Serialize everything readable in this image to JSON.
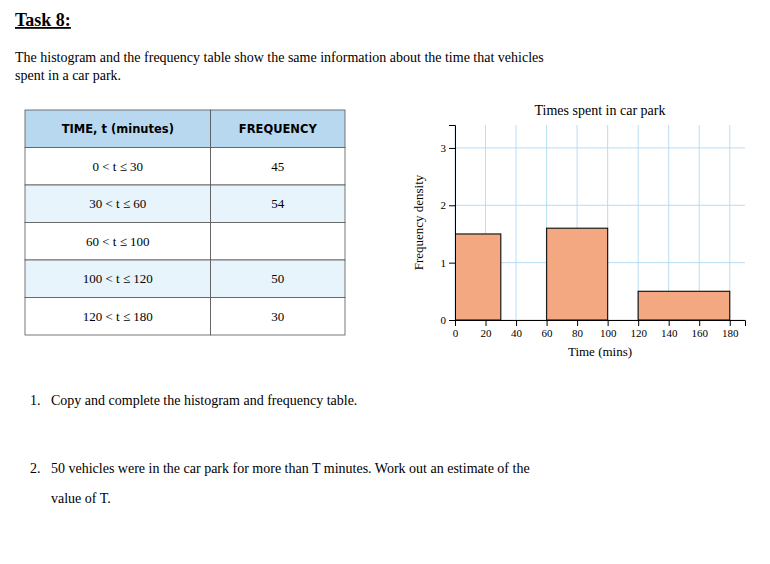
{
  "chart_data": [
    {
      "type": "table",
      "columns": [
        "TIME, t (minutes)",
        "FREQUENCY"
      ],
      "rows": [
        [
          "0 < t ≤ 30",
          45
        ],
        [
          "30 < t ≤ 60",
          54
        ],
        [
          "60 < t ≤ 100",
          null
        ],
        [
          "100 < t ≤ 120",
          50
        ],
        [
          "120 < t ≤ 180",
          30
        ]
      ],
      "annotations": [
        "Task 8:",
        "The histogram and the frequency table show the same information about the time that vehicles",
        "spent in a car park.",
        "1.   Copy and complete the histogram and frequency table.",
        "2.   50 vehicles were in the car park for more than T minutes. Work out an estimate of the",
        "      value of T."
      ]
    },
    {
      "type": "histogram",
      "title": "Times spent in car park",
      "x_label": "Time (mins)",
      "y_label": "Frequency density",
      "bins": [
        0,
        30,
        60,
        100,
        120,
        180
      ],
      "values": [
        1.5,
        null,
        1.6,
        null,
        0.5
      ],
      "color": "#F4A882",
      "xlim": [
        0,
        190
      ],
      "ylim": [
        0,
        3.4
      ],
      "xticks": [
        0,
        20,
        40,
        60,
        80,
        100,
        120,
        140,
        160,
        180
      ],
      "yticks": [
        0,
        1,
        2,
        3
      ],
      "grid": true
    }
  ]
}
